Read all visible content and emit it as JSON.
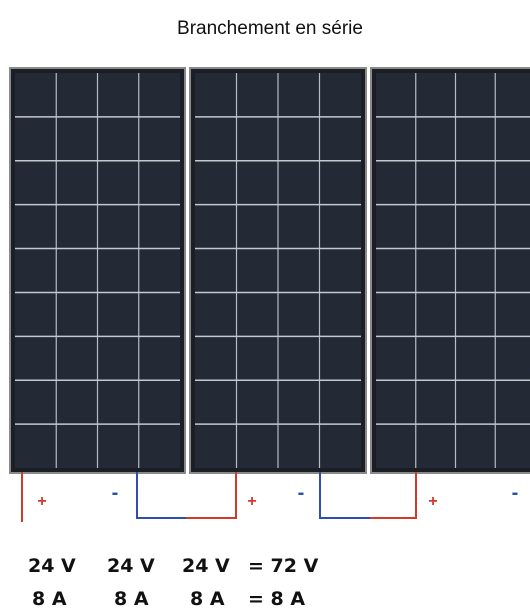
{
  "title": "Branchement en série",
  "terminals": [
    "+",
    "-",
    "+",
    "-",
    "+",
    "-"
  ],
  "totals": {
    "voltage": [
      "24 V",
      "24 V",
      "24 V",
      "= 72 V"
    ],
    "current": [
      "8 A",
      "8 A",
      "8 A",
      "= 8 A"
    ]
  }
}
